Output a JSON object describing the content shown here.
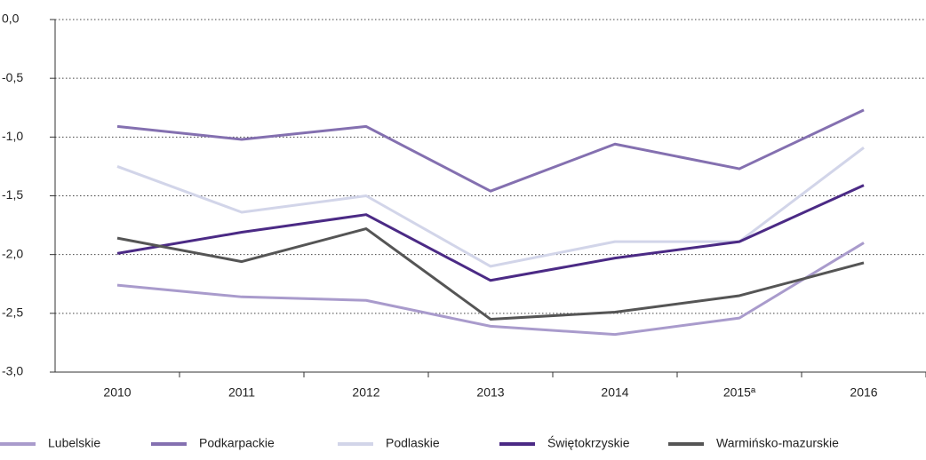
{
  "chart_data": {
    "type": "line",
    "categories": [
      "2010",
      "2011",
      "2012",
      "2013",
      "2014",
      "2015ª",
      "2016"
    ],
    "series": [
      {
        "name": "Lubelskie",
        "color": "#a99bcc",
        "values": [
          -2.26,
          -2.36,
          -2.39,
          -2.61,
          -2.68,
          -2.54,
          -1.9
        ]
      },
      {
        "name": "Podkarpackie",
        "color": "#8470b0",
        "values": [
          -0.91,
          -1.02,
          -0.91,
          -1.46,
          -1.06,
          -1.27,
          -0.77
        ]
      },
      {
        "name": "Podlaskie",
        "color": "#d2d5e9",
        "values": [
          -1.25,
          -1.64,
          -1.5,
          -2.1,
          -1.89,
          -1.89,
          -1.09
        ]
      },
      {
        "name": "Świętokrzyskie",
        "color": "#4b2a85",
        "values": [
          -1.99,
          -1.81,
          -1.66,
          -2.22,
          -2.03,
          -1.89,
          -1.41
        ]
      },
      {
        "name": "Warmińsko-mazurskie",
        "color": "#555555",
        "values": [
          -1.86,
          -2.06,
          -1.78,
          -2.55,
          -2.49,
          -2.35,
          -2.07
        ]
      }
    ],
    "ylim": [
      -3,
      0
    ],
    "yticks": [
      {
        "value": 0,
        "label": "0,0"
      },
      {
        "value": -0.5,
        "label": "-0,5"
      },
      {
        "value": -1,
        "label": "-1,0"
      },
      {
        "value": -1.5,
        "label": "-1,5"
      },
      {
        "value": -2,
        "label": "-2,0"
      },
      {
        "value": -2.5,
        "label": "-2,5"
      },
      {
        "value": -3,
        "label": "-3,0"
      }
    ],
    "grid": true,
    "legend": "bottom"
  }
}
